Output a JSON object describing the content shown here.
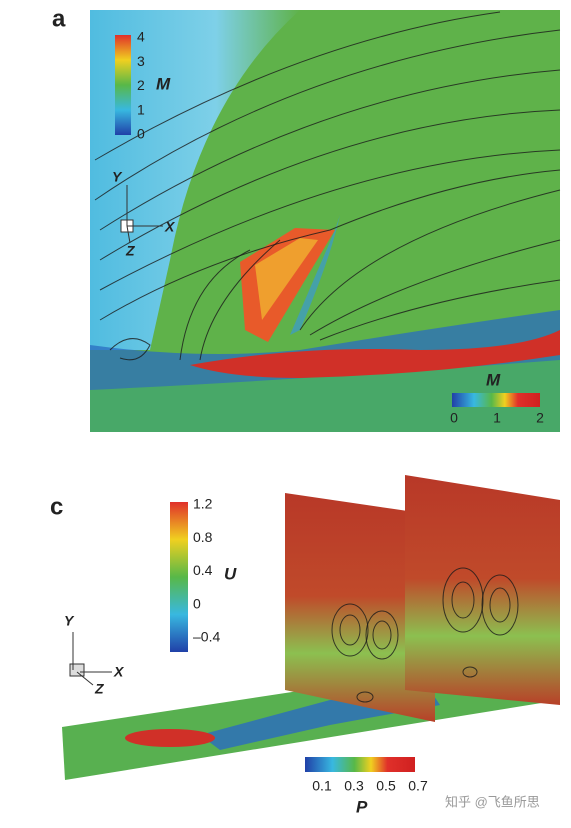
{
  "panel_a": {
    "label": "a",
    "colorbar_top": {
      "ticks": [
        "4",
        "3",
        "2",
        "1",
        "0"
      ],
      "title": "M"
    },
    "colorbar_bottom": {
      "ticks": [
        "0",
        "1",
        "2"
      ],
      "title": "M"
    },
    "axes": {
      "y": "Y",
      "x": "X",
      "z": "Z"
    }
  },
  "panel_c": {
    "label": "c",
    "colorbar_u": {
      "ticks": [
        "1.2",
        "0.8",
        "0.4",
        "0",
        "–0.4"
      ],
      "title": "U"
    },
    "colorbar_p": {
      "ticks": [
        "0.1",
        "0.3",
        "0.5",
        "0.7"
      ],
      "title": "P"
    },
    "axes": {
      "y": "Y",
      "x": "X",
      "z": "Z"
    }
  },
  "watermark": "知乎 @飞鱼所思"
}
